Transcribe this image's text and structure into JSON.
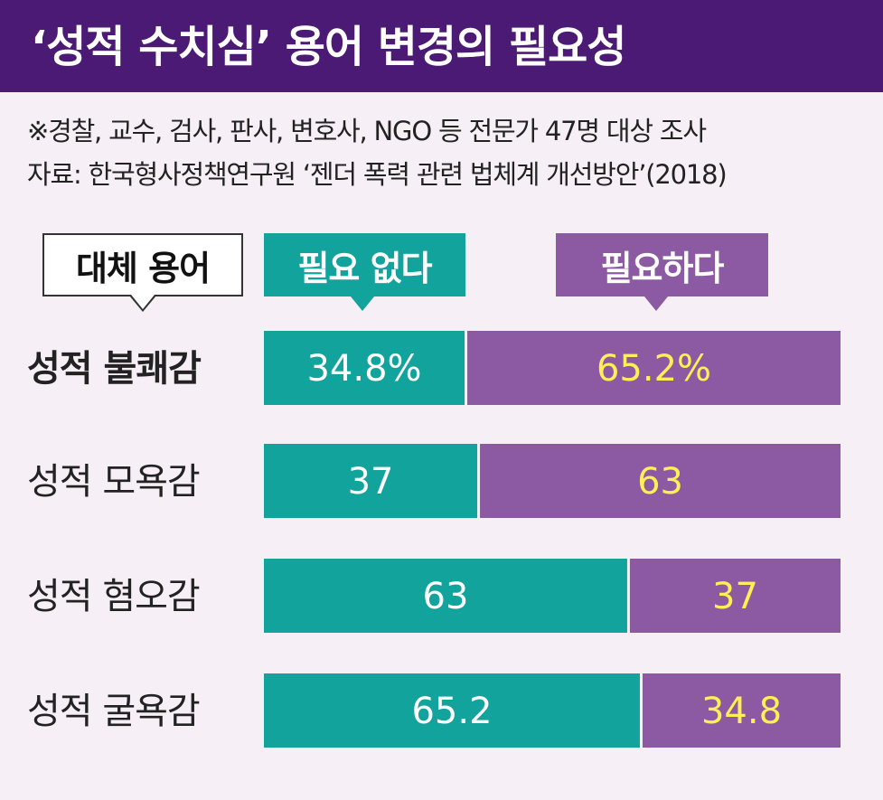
{
  "header": {
    "title": "‘성적 수치심’ 용어 변경의 필요성"
  },
  "notes": {
    "survey": "※경찰, 교수, 검사, 판사, 변호사, NGO 등 전문가 47명 대상 조사",
    "source": "자료: 한국형사정책연구원 ‘젠더 폭력 관련 법체계 개선방안’(2018)"
  },
  "legend": {
    "category_header": "대체 용어",
    "not_needed": "필요 없다",
    "needed": "필요하다"
  },
  "colors": {
    "header_bg": "#4b1a74",
    "not_needed": "#12a39d",
    "needed": "#8c5aa2",
    "not_needed_text": "#ffffff",
    "needed_text": "#ffee55",
    "background": "#f7eff6"
  },
  "chart_data": {
    "type": "bar",
    "orientation": "horizontal",
    "stacked": true,
    "categories": [
      "성적 불쾌감",
      "성적 모욕감",
      "성적 혐오감",
      "성적 굴욕감"
    ],
    "series": [
      {
        "name": "필요 없다",
        "values": [
          34.8,
          37,
          63,
          65.2
        ],
        "labels": [
          "34.8%",
          "37",
          "63",
          "65.2"
        ]
      },
      {
        "name": "필요하다",
        "values": [
          65.2,
          63,
          37,
          34.8
        ],
        "labels": [
          "65.2%",
          "63",
          "37",
          "34.8"
        ]
      }
    ],
    "xlim": [
      0,
      100
    ],
    "bold_category_index": 0
  }
}
